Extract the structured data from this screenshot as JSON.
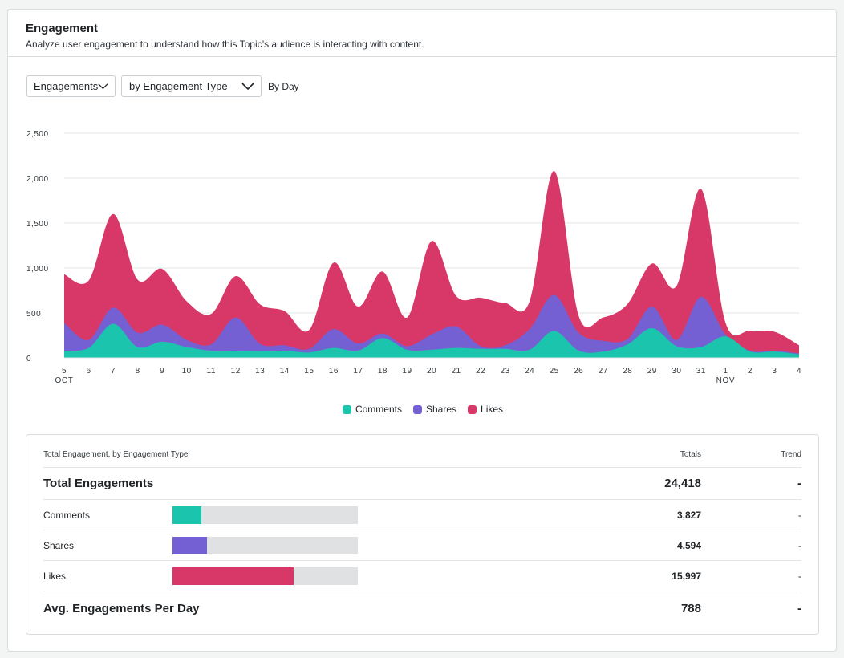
{
  "header": {
    "title": "Engagement",
    "subtitle": "Analyze user engagement to understand how this Topic’s audience is interacting with content."
  },
  "controls": {
    "metric": "Engagements",
    "grouping": "by Engagement Type",
    "period": "By Day"
  },
  "colors": {
    "comments": "#1bc4ad",
    "shares": "#7560d3",
    "likes": "#d83868",
    "grid": "#e3e6e8"
  },
  "chart_data": {
    "type": "area",
    "stacked": true,
    "x": [
      "5",
      "6",
      "7",
      "8",
      "9",
      "10",
      "11",
      "12",
      "13",
      "14",
      "15",
      "16",
      "17",
      "18",
      "19",
      "20",
      "21",
      "22",
      "23",
      "24",
      "25",
      "26",
      "27",
      "28",
      "29",
      "30",
      "31",
      "1",
      "2",
      "3",
      "4"
    ],
    "month_labels": [
      {
        "index": 0,
        "label": "OCT"
      },
      {
        "index": 27,
        "label": "NOV"
      }
    ],
    "ylim": [
      0,
      2500
    ],
    "yticks": [
      "0",
      "500",
      "1,000",
      "1,500",
      "2,000",
      "2,500"
    ],
    "grid": true,
    "legend_position": "bottom",
    "series": [
      {
        "name": "Comments",
        "values": [
          80,
          110,
          380,
          120,
          180,
          120,
          80,
          80,
          75,
          80,
          60,
          110,
          80,
          220,
          90,
          90,
          110,
          100,
          100,
          90,
          300,
          80,
          70,
          150,
          330,
          130,
          120,
          240,
          70,
          70,
          40
        ]
      },
      {
        "name": "Shares",
        "values": [
          310,
          90,
          180,
          160,
          190,
          80,
          70,
          370,
          80,
          60,
          40,
          210,
          80,
          50,
          40,
          170,
          240,
          30,
          40,
          230,
          400,
          200,
          120,
          60,
          240,
          70,
          560,
          20,
          10,
          10,
          10
        ]
      },
      {
        "name": "Likes",
        "values": [
          540,
          660,
          1040,
          590,
          620,
          430,
          340,
          460,
          440,
          380,
          210,
          740,
          410,
          690,
          320,
          1040,
          340,
          540,
          470,
          310,
          1380,
          190,
          260,
          390,
          480,
          600,
          1200,
          130,
          220,
          210,
          90
        ]
      }
    ]
  },
  "table": {
    "header": {
      "label": "Total Engagement, by Engagement Type",
      "totals": "Totals",
      "trend": "Trend"
    },
    "total_row": {
      "label": "Total Engagements",
      "total": "24,418",
      "trend": "-"
    },
    "rows": [
      {
        "label": "Comments",
        "share": 0.157,
        "total": "3,827",
        "trend": "-"
      },
      {
        "label": "Shares",
        "share": 0.188,
        "total": "4,594",
        "trend": "-"
      },
      {
        "label": "Likes",
        "share": 0.655,
        "total": "15,997",
        "trend": "-"
      }
    ],
    "avg_row": {
      "label": "Avg. Engagements Per Day",
      "total": "788",
      "trend": "-"
    }
  }
}
